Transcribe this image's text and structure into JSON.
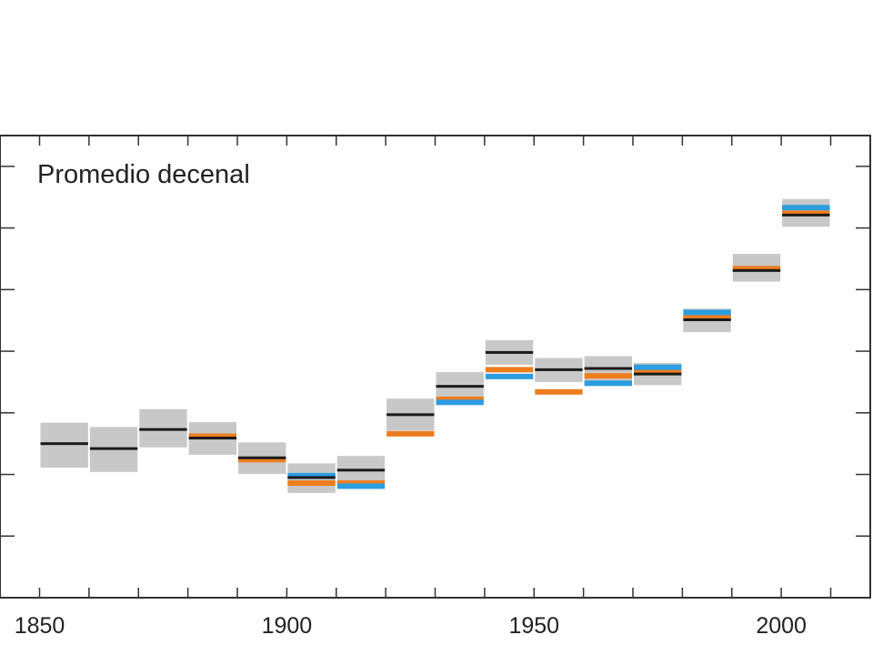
{
  "chart_data": {
    "type": "line",
    "panel_label": "Promedio decenal",
    "xlabel": "",
    "ylabel": "",
    "xlim": [
      1842,
      2018
    ],
    "ylim": [
      -0.8,
      0.7
    ],
    "x_ticks": [
      1850,
      1900,
      1950,
      2000
    ],
    "x_tick_labels": [
      "1850",
      "1900",
      "1950",
      "2000"
    ],
    "y_ticks": [
      -0.6,
      -0.4,
      -0.2,
      0.0,
      0.2,
      0.4,
      0.6
    ],
    "decades": [
      {
        "start": 1850,
        "end": 1860,
        "mean": -0.3,
        "band_low": -0.378,
        "band_high": -0.232
      },
      {
        "start": 1860,
        "end": 1870,
        "mean": -0.316,
        "band_low": -0.392,
        "band_high": -0.246
      },
      {
        "start": 1870,
        "end": 1880,
        "mean": -0.254,
        "band_low": -0.312,
        "band_high": -0.188
      },
      {
        "start": 1880,
        "end": 1890,
        "mean": -0.282,
        "band_low": -0.336,
        "band_high": -0.23
      },
      {
        "start": 1890,
        "end": 1900,
        "mean": -0.346,
        "band_low": -0.398,
        "band_high": -0.296
      },
      {
        "start": 1900,
        "end": 1910,
        "mean": -0.41,
        "band_low": -0.46,
        "band_high": -0.364
      },
      {
        "start": 1910,
        "end": 1920,
        "mean": -0.386,
        "band_low": -0.434,
        "band_high": -0.34
      },
      {
        "start": 1920,
        "end": 1930,
        "mean": -0.206,
        "band_low": -0.258,
        "band_high": -0.154
      },
      {
        "start": 1930,
        "end": 1940,
        "mean": -0.114,
        "band_low": -0.158,
        "band_high": -0.068
      },
      {
        "start": 1940,
        "end": 1950,
        "mean": -0.004,
        "band_low": -0.044,
        "band_high": 0.036
      },
      {
        "start": 1950,
        "end": 1960,
        "mean": -0.06,
        "band_low": -0.1,
        "band_high": -0.022
      },
      {
        "start": 1960,
        "end": 1970,
        "mean": -0.056,
        "band_low": -0.096,
        "band_high": -0.016
      },
      {
        "start": 1970,
        "end": 1980,
        "mean": -0.074,
        "band_low": -0.11,
        "band_high": -0.038
      },
      {
        "start": 1980,
        "end": 1990,
        "mean": 0.102,
        "band_low": 0.062,
        "band_high": 0.138
      },
      {
        "start": 1990,
        "end": 2000,
        "mean": 0.262,
        "band_low": 0.226,
        "band_high": 0.316
      },
      {
        "start": 2000,
        "end": 2010,
        "mean": 0.442,
        "band_low": 0.404,
        "band_high": 0.494
      }
    ],
    "series": [
      {
        "color": "#ee7d1f",
        "points": [
          {
            "start": 1880,
            "end": 1890,
            "value": -0.276
          },
          {
            "start": 1890,
            "end": 1900,
            "value": -0.352
          },
          {
            "start": 1900,
            "end": 1910,
            "value": -0.428
          },
          {
            "start": 1910,
            "end": 1920,
            "value": -0.428
          },
          {
            "start": 1920,
            "end": 1930,
            "value": -0.268
          },
          {
            "start": 1930,
            "end": 1940,
            "value": -0.156
          },
          {
            "start": 1940,
            "end": 1950,
            "value": -0.06
          },
          {
            "start": 1950,
            "end": 1960,
            "value": -0.132
          },
          {
            "start": 1960,
            "end": 1970,
            "value": -0.08
          },
          {
            "start": 1970,
            "end": 1980,
            "value": -0.062
          },
          {
            "start": 1980,
            "end": 1990,
            "value": 0.112
          },
          {
            "start": 1990,
            "end": 2000,
            "value": 0.268
          },
          {
            "start": 2000,
            "end": 2010,
            "value": 0.448
          }
        ]
      },
      {
        "color": "#2b9de0",
        "points": [
          {
            "start": 1900,
            "end": 1910,
            "value": -0.404
          },
          {
            "start": 1910,
            "end": 1920,
            "value": -0.438
          },
          {
            "start": 1930,
            "end": 1940,
            "value": -0.166
          },
          {
            "start": 1940,
            "end": 1950,
            "value": -0.082
          },
          {
            "start": 1960,
            "end": 1970,
            "value": -0.104
          },
          {
            "start": 1970,
            "end": 1980,
            "value": -0.052
          },
          {
            "start": 1980,
            "end": 1990,
            "value": 0.126
          },
          {
            "start": 2000,
            "end": 2010,
            "value": 0.466
          }
        ]
      }
    ],
    "band_color": "#c8c8c8",
    "mean_color": "#1a1a1a",
    "grid": false
  }
}
